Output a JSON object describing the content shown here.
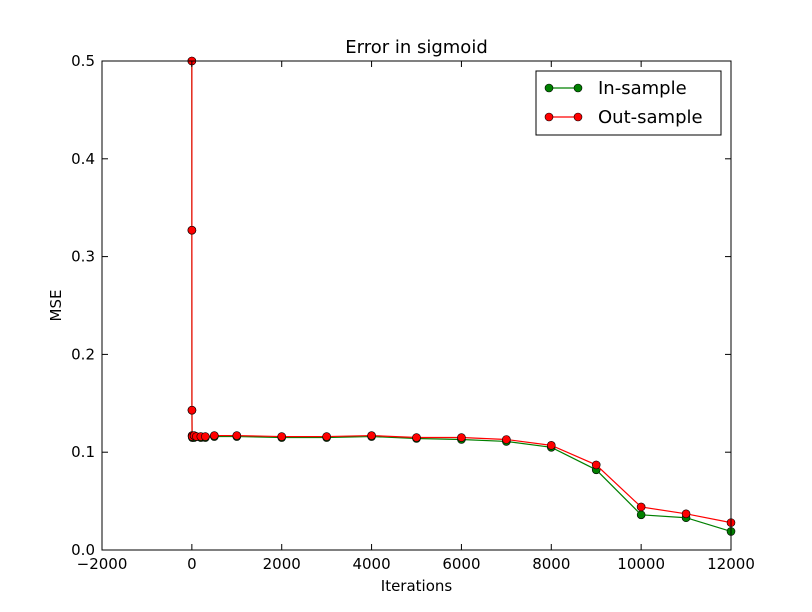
{
  "chart_data": {
    "type": "line",
    "title": "Error in sigmoid",
    "xlabel": "Iterations",
    "ylabel": "MSE",
    "xlim": [
      -2000,
      12000
    ],
    "ylim": [
      0.0,
      0.5
    ],
    "x_ticks": [
      -2000,
      0,
      2000,
      4000,
      6000,
      8000,
      10000,
      12000
    ],
    "x_tick_labels": [
      "−2000",
      "0",
      "2000",
      "4000",
      "6000",
      "8000",
      "10000",
      "12000"
    ],
    "y_ticks": [
      0.0,
      0.1,
      0.2,
      0.3,
      0.4,
      0.5
    ],
    "y_tick_labels": [
      "0.0",
      "0.1",
      "0.2",
      "0.3",
      "0.4",
      "0.5"
    ],
    "grid": false,
    "legend_position": "top-right",
    "series": [
      {
        "name": "In-sample",
        "color": "#008000",
        "x": [
          0,
          1,
          2,
          5,
          10,
          50,
          100,
          200,
          300,
          500,
          1000,
          2000,
          3000,
          4000,
          5000,
          6000,
          7000,
          8000,
          9000,
          10000,
          11000,
          12000
        ],
        "y": [
          0.5,
          0.327,
          0.143,
          0.116,
          0.115,
          0.115,
          0.116,
          0.115,
          0.115,
          0.116,
          0.116,
          0.115,
          0.115,
          0.116,
          0.114,
          0.113,
          0.111,
          0.105,
          0.082,
          0.036,
          0.033,
          0.019
        ]
      },
      {
        "name": "Out-sample",
        "color": "#ff0000",
        "x": [
          0,
          1,
          2,
          5,
          10,
          50,
          100,
          200,
          300,
          500,
          1000,
          2000,
          3000,
          4000,
          5000,
          6000,
          7000,
          8000,
          9000,
          10000,
          11000,
          12000
        ],
        "y": [
          0.5,
          0.327,
          0.143,
          0.117,
          0.116,
          0.117,
          0.116,
          0.116,
          0.116,
          0.117,
          0.117,
          0.116,
          0.116,
          0.117,
          0.115,
          0.115,
          0.113,
          0.107,
          0.087,
          0.044,
          0.037,
          0.028
        ]
      }
    ]
  }
}
